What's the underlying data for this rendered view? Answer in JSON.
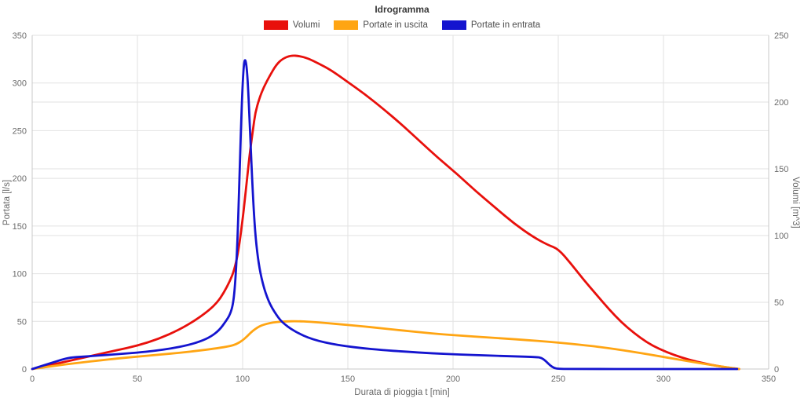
{
  "chart_data": {
    "type": "line",
    "title": "Idrogramma",
    "xlabel": "Durata di pioggia t [min]",
    "ylabel_left": "Portata [l/s]",
    "ylabel_right": "Volumi [m^3]",
    "xlim": [
      0,
      350
    ],
    "ylim_left": [
      0,
      350
    ],
    "ylim_right": [
      0,
      250
    ],
    "x_ticks": [
      0,
      50,
      100,
      150,
      200,
      250,
      300,
      350
    ],
    "y_ticks_left": [
      0,
      50,
      100,
      150,
      200,
      250,
      300,
      350
    ],
    "y_ticks_right": [
      0,
      50,
      100,
      150,
      200,
      250
    ],
    "grid": true,
    "legend_position": "top",
    "gridline_color": "#e2e2e2",
    "axis_line_color": "#c8c8c8",
    "tick_label_color": "#6b6b6b",
    "series": [
      {
        "name": "Volumi",
        "color": "#e8100c",
        "axis": "right",
        "unit": "m^3",
        "points": [
          [
            0,
            0
          ],
          [
            10,
            3.5
          ],
          [
            20,
            7
          ],
          [
            30,
            10.5
          ],
          [
            40,
            14
          ],
          [
            50,
            17.5
          ],
          [
            60,
            22.5
          ],
          [
            70,
            29.5
          ],
          [
            78,
            37
          ],
          [
            84,
            44
          ],
          [
            88,
            50
          ],
          [
            91,
            57
          ],
          [
            94,
            66
          ],
          [
            96,
            74
          ],
          [
            98,
            88
          ],
          [
            100,
            112
          ],
          [
            101,
            126
          ],
          [
            102,
            141
          ],
          [
            103.5,
            163
          ],
          [
            105,
            180
          ],
          [
            106,
            192
          ],
          [
            108,
            203
          ],
          [
            110,
            211
          ],
          [
            113,
            220
          ],
          [
            116,
            228
          ],
          [
            119,
            232.5
          ],
          [
            123,
            235
          ],
          [
            127,
            234.5
          ],
          [
            131,
            232.8
          ],
          [
            136,
            229
          ],
          [
            142,
            224
          ],
          [
            150,
            215
          ],
          [
            158,
            206
          ],
          [
            166,
            196
          ],
          [
            175,
            184
          ],
          [
            184,
            171
          ],
          [
            193,
            158
          ],
          [
            202,
            146
          ],
          [
            211,
            133
          ],
          [
            220,
            121
          ],
          [
            229,
            109
          ],
          [
            238,
            99
          ],
          [
            245,
            93
          ],
          [
            250,
            90
          ],
          [
            256,
            79
          ],
          [
            262,
            67
          ],
          [
            268,
            56
          ],
          [
            274,
            45
          ],
          [
            280,
            35
          ],
          [
            286,
            27
          ],
          [
            292,
            20
          ],
          [
            298,
            15
          ],
          [
            305,
            10.5
          ],
          [
            312,
            7
          ],
          [
            319,
            4.3
          ],
          [
            326,
            2.2
          ],
          [
            332,
            0.8
          ],
          [
            336,
            0
          ]
        ]
      },
      {
        "name": "Portate in uscita",
        "color": "#ffa513",
        "axis": "left",
        "unit": "l/s",
        "points": [
          [
            0,
            0
          ],
          [
            8,
            2.5
          ],
          [
            16,
            5
          ],
          [
            24,
            7
          ],
          [
            32,
            9
          ],
          [
            40,
            11
          ],
          [
            50,
            13
          ],
          [
            60,
            15
          ],
          [
            70,
            17
          ],
          [
            80,
            19.5
          ],
          [
            88,
            21.8
          ],
          [
            94,
            24
          ],
          [
            97,
            26
          ],
          [
            100,
            30
          ],
          [
            102,
            34
          ],
          [
            104,
            38.5
          ],
          [
            106,
            42
          ],
          [
            108,
            44.8
          ],
          [
            110,
            46.5
          ],
          [
            113,
            48.3
          ],
          [
            116,
            49.3
          ],
          [
            120,
            50
          ],
          [
            126,
            50.2
          ],
          [
            132,
            49.6
          ],
          [
            140,
            48.2
          ],
          [
            148,
            46.6
          ],
          [
            156,
            45
          ],
          [
            165,
            43
          ],
          [
            175,
            40.6
          ],
          [
            185,
            38.4
          ],
          [
            195,
            36.4
          ],
          [
            205,
            34.8
          ],
          [
            215,
            33.3
          ],
          [
            225,
            31.9
          ],
          [
            235,
            30.4
          ],
          [
            245,
            28.7
          ],
          [
            255,
            26.7
          ],
          [
            265,
            24.4
          ],
          [
            273,
            22.2
          ],
          [
            281,
            19.6
          ],
          [
            289,
            16.8
          ],
          [
            297,
            13.8
          ],
          [
            305,
            10.8
          ],
          [
            313,
            7.8
          ],
          [
            320,
            5.2
          ],
          [
            327,
            2.8
          ],
          [
            332,
            1.2
          ],
          [
            336,
            0
          ]
        ]
      },
      {
        "name": "Portate in entrata",
        "color": "#1414cf",
        "axis": "left",
        "unit": "l/s",
        "points": [
          [
            0,
            0
          ],
          [
            5,
            3.5
          ],
          [
            10,
            7
          ],
          [
            14,
            9.8
          ],
          [
            18,
            12
          ],
          [
            24,
            13
          ],
          [
            32,
            14.2
          ],
          [
            40,
            15.5
          ],
          [
            50,
            17.2
          ],
          [
            58,
            19
          ],
          [
            66,
            21.5
          ],
          [
            74,
            25
          ],
          [
            80,
            29
          ],
          [
            85,
            34
          ],
          [
            89,
            41
          ],
          [
            92,
            50
          ],
          [
            94,
            57
          ],
          [
            95.5,
            68
          ],
          [
            96.5,
            90
          ],
          [
            97.5,
            130
          ],
          [
            98.5,
            200
          ],
          [
            99.5,
            272
          ],
          [
            100.3,
            312
          ],
          [
            101,
            326
          ],
          [
            101.8,
            320
          ],
          [
            102.5,
            300
          ],
          [
            103.5,
            252
          ],
          [
            104.5,
            200
          ],
          [
            105.5,
            158
          ],
          [
            106.5,
            130
          ],
          [
            108,
            105
          ],
          [
            110,
            86
          ],
          [
            112,
            73
          ],
          [
            114,
            64
          ],
          [
            116,
            57
          ],
          [
            118,
            51
          ],
          [
            120,
            47
          ],
          [
            123,
            42
          ],
          [
            127,
            37
          ],
          [
            131,
            33
          ],
          [
            136,
            29.5
          ],
          [
            142,
            26.5
          ],
          [
            149,
            24
          ],
          [
            157,
            21.8
          ],
          [
            166,
            20
          ],
          [
            177,
            18.2
          ],
          [
            190,
            16.5
          ],
          [
            203,
            15.2
          ],
          [
            216,
            14.2
          ],
          [
            229,
            13.3
          ],
          [
            240,
            12.5
          ],
          [
            242,
            11.8
          ],
          [
            244,
            8.5
          ],
          [
            246,
            4
          ],
          [
            248,
            1
          ],
          [
            250,
            0.2
          ],
          [
            255,
            0
          ],
          [
            300,
            0
          ],
          [
            335,
            0
          ]
        ]
      }
    ]
  }
}
